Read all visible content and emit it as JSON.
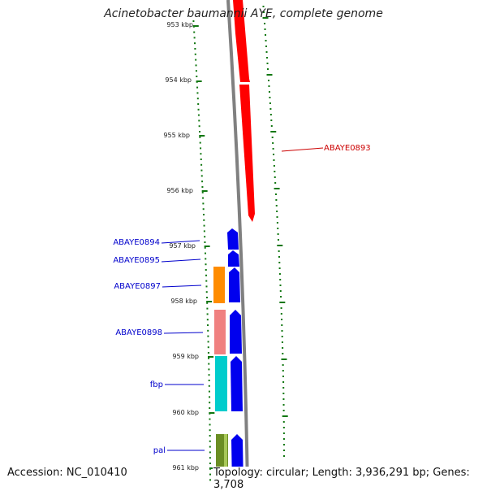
{
  "title": "Acinetobacter baumannii AYE, complete genome",
  "footer": {
    "accession": "Accession: NC_010410",
    "summary": "Topology: circular; Length: 3,936,291 bp; Genes: 3,708"
  },
  "ruler": {
    "ticks": [
      "953 kbp",
      "954 kbp",
      "955 kbp",
      "956 kbp",
      "957 kbp",
      "958 kbp",
      "959 kbp",
      "960 kbp",
      "961 kbp"
    ]
  },
  "genes": [
    {
      "label": "ABAYE0893",
      "color": "#ff0000",
      "label_color": "#cc0000"
    },
    {
      "label": "ABAYE0894",
      "color": "#0000ee",
      "label_color": "#0000cc"
    },
    {
      "label": "ABAYE0895",
      "color": "#0000ee",
      "label_color": "#0000cc"
    },
    {
      "label": "ABAYE0897",
      "color": "#0000ee",
      "label_color": "#0000cc"
    },
    {
      "label": "ABAYE0898",
      "color": "#0000ee",
      "label_color": "#0000cc"
    },
    {
      "label": "fbp",
      "color": "#0000ee",
      "label_color": "#0000cc"
    },
    {
      "label": "pal",
      "color": "#0000ee",
      "label_color": "#0000cc"
    }
  ],
  "colors": {
    "backbone": "#808080",
    "tick": "#117711",
    "feature_orange": "#ff8c00",
    "feature_pink": "#f08080",
    "feature_cyan": "#00cccc",
    "feature_olive": "#6b8e23"
  }
}
